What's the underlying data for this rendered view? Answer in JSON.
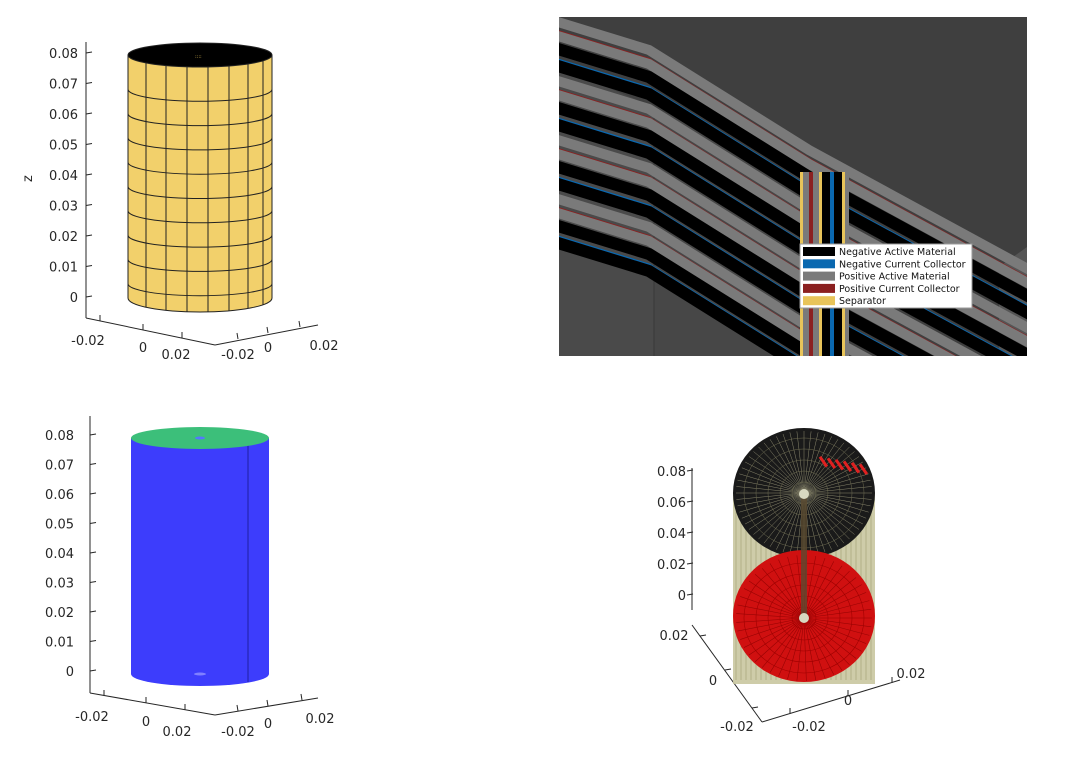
{
  "chart_data": [
    {
      "type": "3d-surface",
      "panel": "top-left",
      "description_color": "#f2d06b",
      "zlabel": "z",
      "zticks": [
        "0.08",
        "0.07",
        "0.06",
        "0.05",
        "0.04",
        "0.03",
        "0.02",
        "0.01",
        "0"
      ],
      "xticks": [
        "-0.02",
        "0",
        "0.02"
      ],
      "yticks": [
        "-0.02",
        "0",
        "0.02"
      ],
      "zlim": [
        0,
        0.08
      ]
    },
    {
      "type": "image",
      "panel": "top-right",
      "legend": [
        {
          "label": "Negative Active Material",
          "color": "#000000"
        },
        {
          "label": "Negative Current Collector",
          "color": "#0a68b0"
        },
        {
          "label": "Positive Active Material",
          "color": "#7a7a7a"
        },
        {
          "label": "Positive Current Collector",
          "color": "#8b2020"
        },
        {
          "label": "Separator",
          "color": "#e8c45a"
        }
      ]
    },
    {
      "type": "3d-surface",
      "panel": "bottom-left",
      "side_color": "#3d3dfc",
      "top_color": "#3cbf7a",
      "zticks": [
        "0.08",
        "0.07",
        "0.06",
        "0.05",
        "0.04",
        "0.03",
        "0.02",
        "0.01",
        "0"
      ],
      "xticks": [
        "-0.02",
        "0",
        "0.02"
      ],
      "yticks": [
        "-0.02",
        "0",
        "0.02"
      ],
      "zlim": [
        0,
        0.08
      ]
    },
    {
      "type": "3d-surface",
      "panel": "bottom-right",
      "zticks": [
        "0.08",
        "0.06",
        "0.04",
        "0.02",
        "0"
      ],
      "xticks": [
        "0.02",
        "0",
        "-0.02"
      ],
      "yticks": [
        "0.02",
        "0",
        "-0.02"
      ],
      "zlim": [
        0,
        0.08
      ]
    }
  ]
}
